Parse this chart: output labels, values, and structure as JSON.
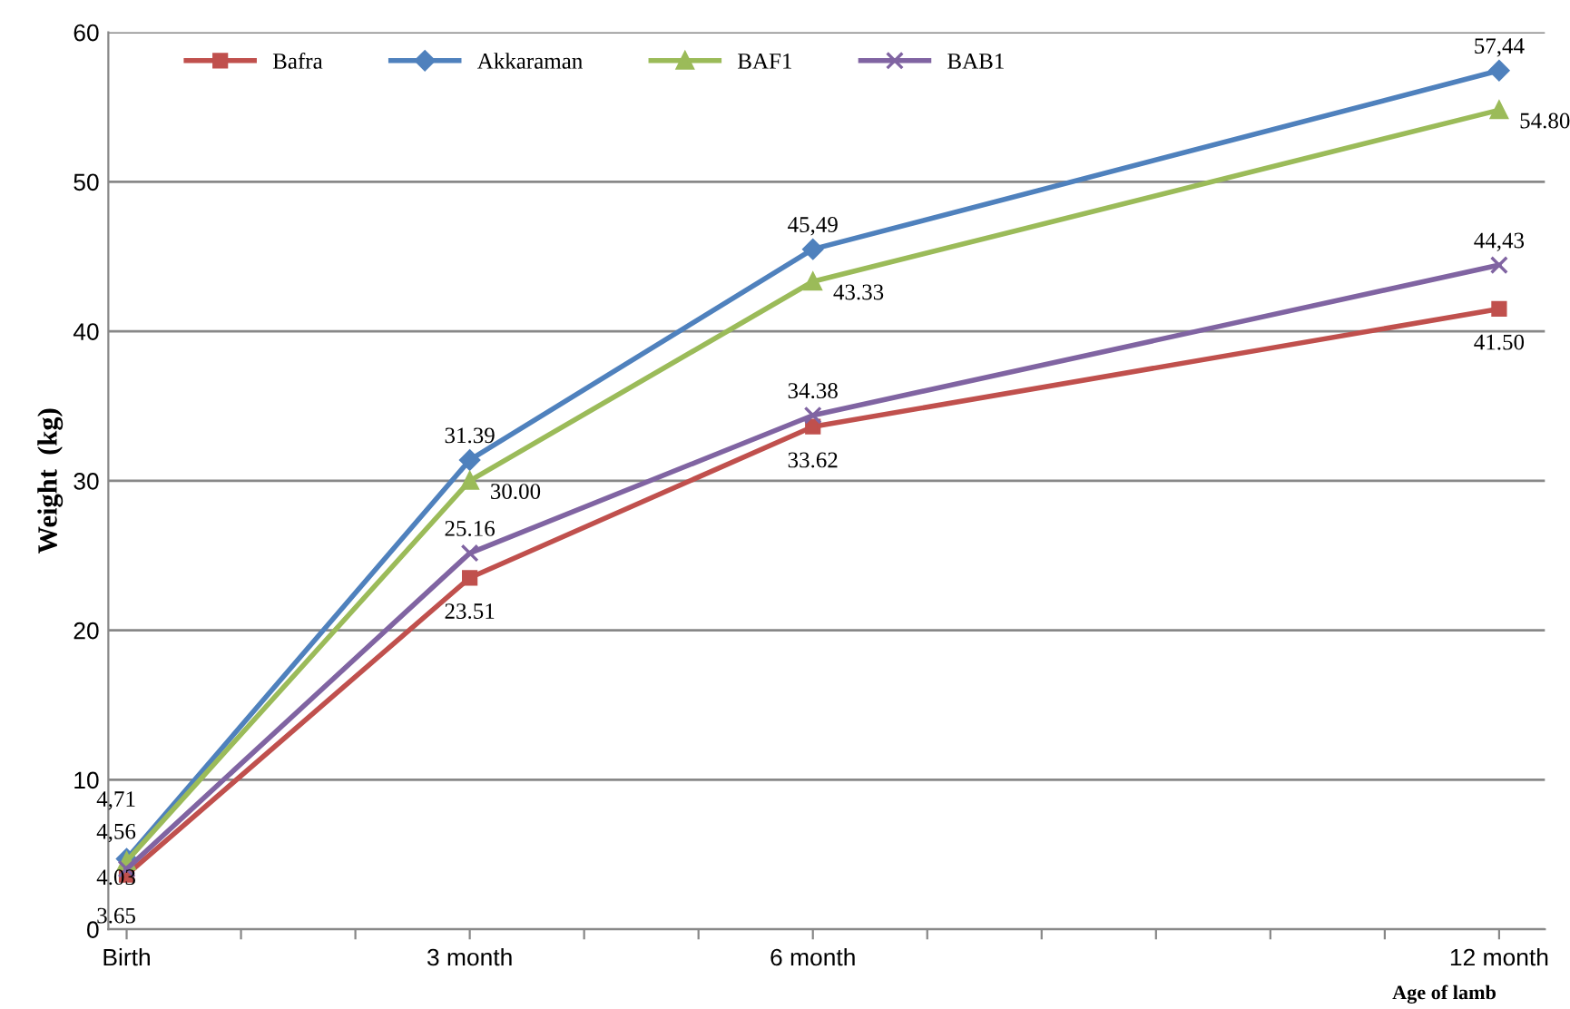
{
  "chart_data": {
    "type": "line",
    "ylabel": "Weight  (kg)",
    "xlabel": "Age of lamb",
    "x": [
      0,
      3,
      6,
      12
    ],
    "xlim": [
      -0.16,
      12.4
    ],
    "xticks": [
      {
        "value": 0,
        "label": "Birth"
      },
      {
        "value": 1,
        "label": null
      },
      {
        "value": 2,
        "label": null
      },
      {
        "value": 3,
        "label": "3 month"
      },
      {
        "value": 4,
        "label": null
      },
      {
        "value": 5,
        "label": null
      },
      {
        "value": 6,
        "label": "6 month"
      },
      {
        "value": 7,
        "label": null
      },
      {
        "value": 8,
        "label": null
      },
      {
        "value": 9,
        "label": null
      },
      {
        "value": 10,
        "label": null
      },
      {
        "value": 11,
        "label": null
      },
      {
        "value": 12,
        "label": "12 month"
      }
    ],
    "ylim": [
      0,
      60
    ],
    "yticks": [
      0,
      10,
      20,
      30,
      40,
      50,
      60
    ],
    "grid": "y",
    "legend": "top left",
    "line_style": "solid",
    "series": [
      {
        "name": "Bafra",
        "color": "#c0504d",
        "marker": "square",
        "values": [
          3.65,
          23.51,
          33.62,
          41.5
        ],
        "value_labels": [
          "3.65",
          "23.51",
          "33.62",
          "41.50"
        ]
      },
      {
        "name": "Akkaraman",
        "color": "#4f81bd",
        "marker": "diamond",
        "values": [
          4.71,
          31.39,
          45.49,
          57.44
        ],
        "value_labels": [
          "4,71",
          "31.39",
          "45,49",
          "57,44"
        ]
      },
      {
        "name": "BAF1",
        "color": "#9bbb59",
        "marker": "triangle",
        "values": [
          4.56,
          30.0,
          43.33,
          54.8
        ],
        "value_labels": [
          "4,56",
          "30.00",
          "43.33",
          "54.80"
        ]
      },
      {
        "name": "BAB1",
        "color": "#8064a2",
        "marker": "cross",
        "values": [
          4.03,
          25.16,
          34.38,
          44.43
        ],
        "value_labels": [
          "4.03",
          "25.16",
          "34.38",
          "44,43"
        ]
      }
    ]
  }
}
